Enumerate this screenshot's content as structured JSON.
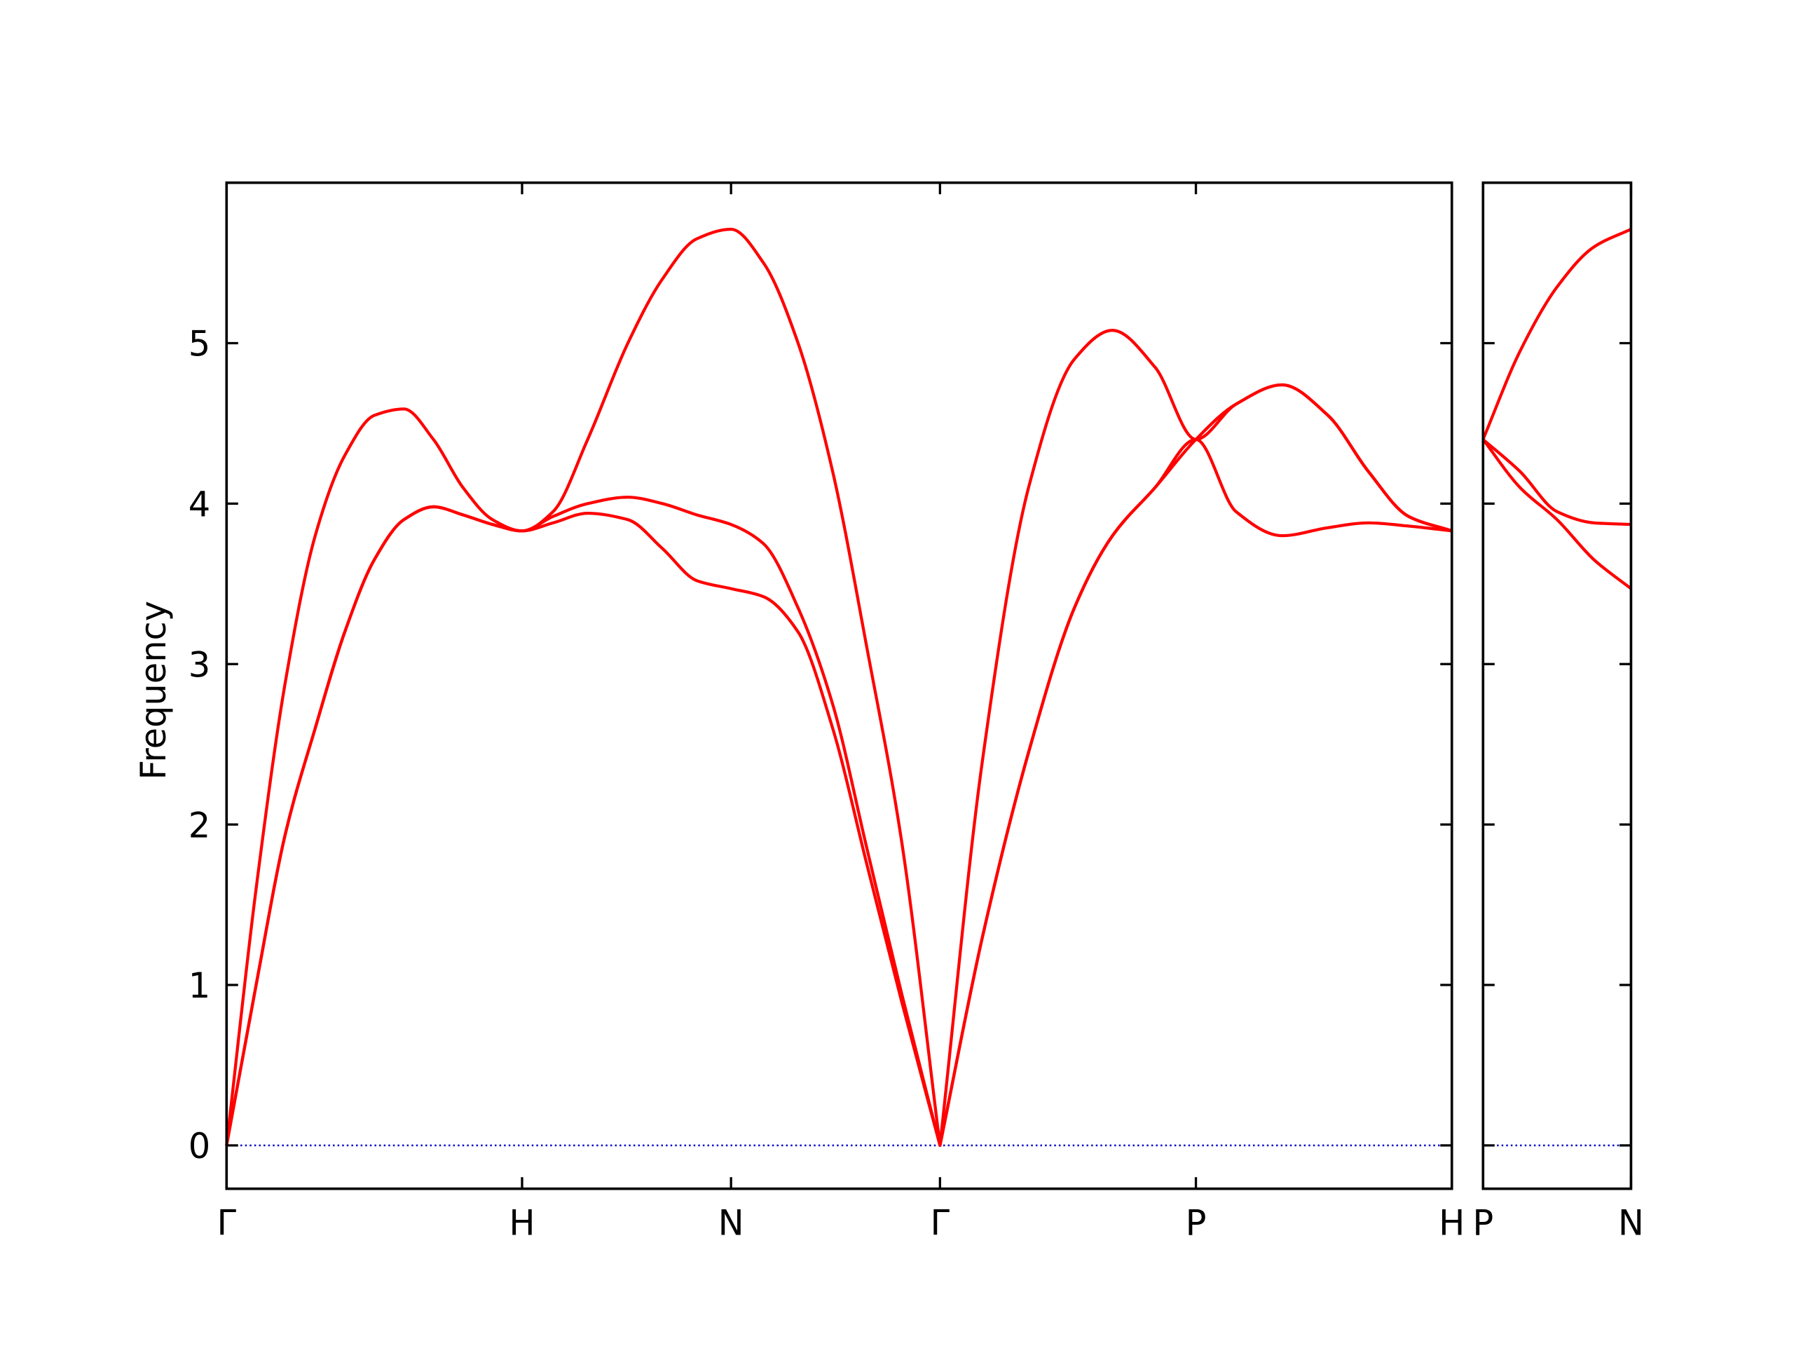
{
  "chart_data": [
    {
      "type": "line",
      "ylabel": "Frequency",
      "x": [
        0,
        0.1,
        0.2,
        0.3,
        0.4,
        0.5,
        0.6,
        0.7,
        0.8,
        0.9,
        1,
        1.105,
        1.222,
        1.358,
        1.475,
        1.591,
        1.7071,
        1.817,
        1.934,
        2.051,
        2.167,
        2.284,
        2.4142,
        2.558,
        2.714,
        2.869,
        2.998,
        3.142,
        3.2802,
        3.416,
        3.572,
        3.727,
        3.864,
        4.0,
        4.1463
      ],
      "series": [
        {
          "color": "#ff0000",
          "values": [
            0,
            1.0,
            1.95,
            2.6,
            3.2,
            3.65,
            3.9,
            3.98,
            3.93,
            3.87,
            3.83,
            3.88,
            3.94,
            3.9,
            3.72,
            3.52,
            3.47,
            3.42,
            3.2,
            2.6,
            1.75,
            0.9,
            0,
            1.3,
            2.45,
            3.35,
            3.8,
            4.1,
            4.4,
            3.95,
            3.8,
            3.85,
            3.88,
            3.86,
            3.83
          ]
        },
        {
          "color": "#ff0000",
          "values": [
            0,
            1.0,
            1.95,
            2.6,
            3.2,
            3.65,
            3.9,
            3.98,
            3.93,
            3.87,
            3.83,
            3.92,
            4.0,
            4.04,
            4.0,
            3.93,
            3.87,
            3.75,
            3.35,
            2.75,
            1.85,
            0.95,
            0,
            1.3,
            2.45,
            3.35,
            3.8,
            4.1,
            4.4,
            4.62,
            4.74,
            4.55,
            4.2,
            3.92,
            3.83
          ]
        },
        {
          "color": "#ff0000",
          "values": [
            0,
            1.6,
            2.9,
            3.8,
            4.3,
            4.55,
            4.59,
            4.4,
            4.1,
            3.9,
            3.83,
            3.95,
            4.4,
            5.0,
            5.4,
            5.65,
            5.71,
            5.5,
            5.0,
            4.2,
            3.1,
            1.9,
            0,
            2.4,
            4.1,
            4.9,
            5.08,
            4.85,
            4.4,
            4.62,
            4.74,
            4.55,
            4.2,
            3.92,
            3.83
          ]
        }
      ],
      "xlim": [
        0,
        4.1463
      ],
      "xticks": [
        {
          "value": 0,
          "label": "Γ"
        },
        {
          "value": 1,
          "label": "H"
        },
        {
          "value": 1.7071,
          "label": "N"
        },
        {
          "value": 2.4142,
          "label": "Γ"
        },
        {
          "value": 3.2802,
          "label": "P"
        },
        {
          "value": 4.1463,
          "label": "H"
        }
      ],
      "ylim": [
        -0.27,
        6.0
      ],
      "yticks": [
        0,
        1,
        2,
        3,
        4,
        5
      ],
      "ytick_labels": true,
      "zero_line": true,
      "zero_line_color": "#0000cc"
    },
    {
      "type": "line",
      "x": [
        0,
        0.125,
        0.25,
        0.375,
        0.5
      ],
      "series": [
        {
          "color": "#ff0000",
          "values": [
            4.4,
            4.1,
            3.9,
            3.65,
            3.47
          ]
        },
        {
          "color": "#ff0000",
          "values": [
            4.4,
            4.2,
            3.95,
            3.88,
            3.87
          ]
        },
        {
          "color": "#ff0000",
          "values": [
            4.4,
            4.95,
            5.35,
            5.6,
            5.71
          ]
        }
      ],
      "xlim": [
        0,
        0.5
      ],
      "xticks": [
        {
          "value": 0,
          "label": "P"
        },
        {
          "value": 0.5,
          "label": "N"
        }
      ],
      "ylim": [
        -0.27,
        6.0
      ],
      "yticks": [
        0,
        1,
        2,
        3,
        4,
        5
      ],
      "ytick_labels": false,
      "zero_line": true,
      "zero_line_color": "#0000cc"
    }
  ]
}
